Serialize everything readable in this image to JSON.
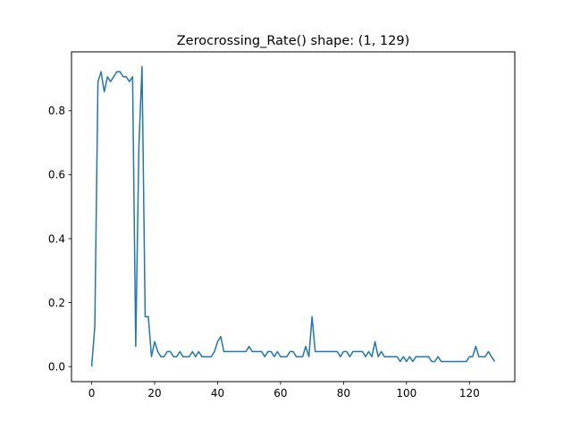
{
  "chart_data": {
    "type": "line",
    "title": "Zerocrossing_Rate() shape: (1, 129)",
    "xlabel": "",
    "ylabel": "",
    "xlim": [
      -6.4,
      134.4
    ],
    "ylim": [
      -0.047,
      0.984
    ],
    "xticks": [
      0,
      20,
      40,
      60,
      80,
      100,
      120
    ],
    "yticks": [
      0.0,
      0.2,
      0.4,
      0.6,
      0.8
    ],
    "ytick_labels": [
      "0.0",
      "0.2",
      "0.4",
      "0.6",
      "0.8"
    ],
    "grid": false,
    "line_color": "#1f77b4",
    "series": [
      {
        "values": [
          0.0,
          0.125,
          0.891,
          0.922,
          0.859,
          0.906,
          0.891,
          0.906,
          0.922,
          0.922,
          0.906,
          0.906,
          0.891,
          0.906,
          0.063,
          0.688,
          0.938,
          0.156,
          0.156,
          0.031,
          0.078,
          0.047,
          0.031,
          0.031,
          0.047,
          0.047,
          0.031,
          0.031,
          0.047,
          0.031,
          0.031,
          0.031,
          0.047,
          0.031,
          0.047,
          0.031,
          0.031,
          0.031,
          0.031,
          0.047,
          0.078,
          0.094,
          0.047,
          0.047,
          0.047,
          0.047,
          0.047,
          0.047,
          0.047,
          0.047,
          0.063,
          0.047,
          0.047,
          0.047,
          0.047,
          0.031,
          0.047,
          0.047,
          0.031,
          0.047,
          0.031,
          0.031,
          0.031,
          0.047,
          0.047,
          0.031,
          0.031,
          0.031,
          0.063,
          0.031,
          0.156,
          0.047,
          0.047,
          0.047,
          0.047,
          0.047,
          0.047,
          0.047,
          0.047,
          0.031,
          0.047,
          0.047,
          0.031,
          0.047,
          0.047,
          0.047,
          0.047,
          0.031,
          0.047,
          0.031,
          0.078,
          0.031,
          0.047,
          0.031,
          0.031,
          0.031,
          0.031,
          0.031,
          0.016,
          0.031,
          0.016,
          0.031,
          0.016,
          0.031,
          0.031,
          0.031,
          0.031,
          0.031,
          0.016,
          0.016,
          0.031,
          0.016,
          0.016,
          0.016,
          0.016,
          0.016,
          0.016,
          0.016,
          0.016,
          0.016,
          0.031,
          0.031,
          0.063,
          0.031,
          0.031,
          0.031,
          0.047,
          0.031,
          0.016
        ]
      }
    ]
  }
}
